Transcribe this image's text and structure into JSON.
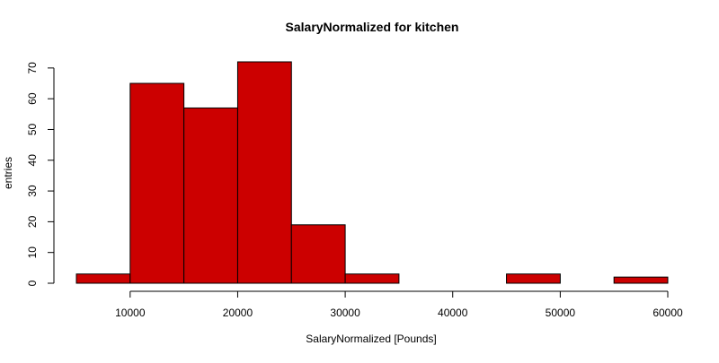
{
  "chart_data": {
    "type": "bar",
    "title": "SalaryNormalized for kitchen",
    "xlabel": "SalaryNormalized [Pounds]",
    "ylabel": "entries",
    "bins": [
      {
        "from": 5000,
        "to": 10000,
        "count": 3
      },
      {
        "from": 10000,
        "to": 15000,
        "count": 65
      },
      {
        "from": 15000,
        "to": 20000,
        "count": 57
      },
      {
        "from": 20000,
        "to": 25000,
        "count": 72
      },
      {
        "from": 25000,
        "to": 30000,
        "count": 19
      },
      {
        "from": 30000,
        "to": 35000,
        "count": 3
      },
      {
        "from": 35000,
        "to": 40000,
        "count": 0
      },
      {
        "from": 40000,
        "to": 45000,
        "count": 0
      },
      {
        "from": 45000,
        "to": 50000,
        "count": 3
      },
      {
        "from": 50000,
        "to": 55000,
        "count": 0
      },
      {
        "from": 55000,
        "to": 60000,
        "count": 2
      }
    ],
    "x_ticks": [
      10000,
      20000,
      30000,
      40000,
      50000,
      60000
    ],
    "y_ticks": [
      0,
      10,
      20,
      30,
      40,
      50,
      60,
      70
    ],
    "xlim": [
      5000,
      60000
    ],
    "ylim": [
      0,
      72
    ],
    "bar_color": "#cc0000",
    "border_color": "#000000",
    "grid": false,
    "legend": "none"
  }
}
